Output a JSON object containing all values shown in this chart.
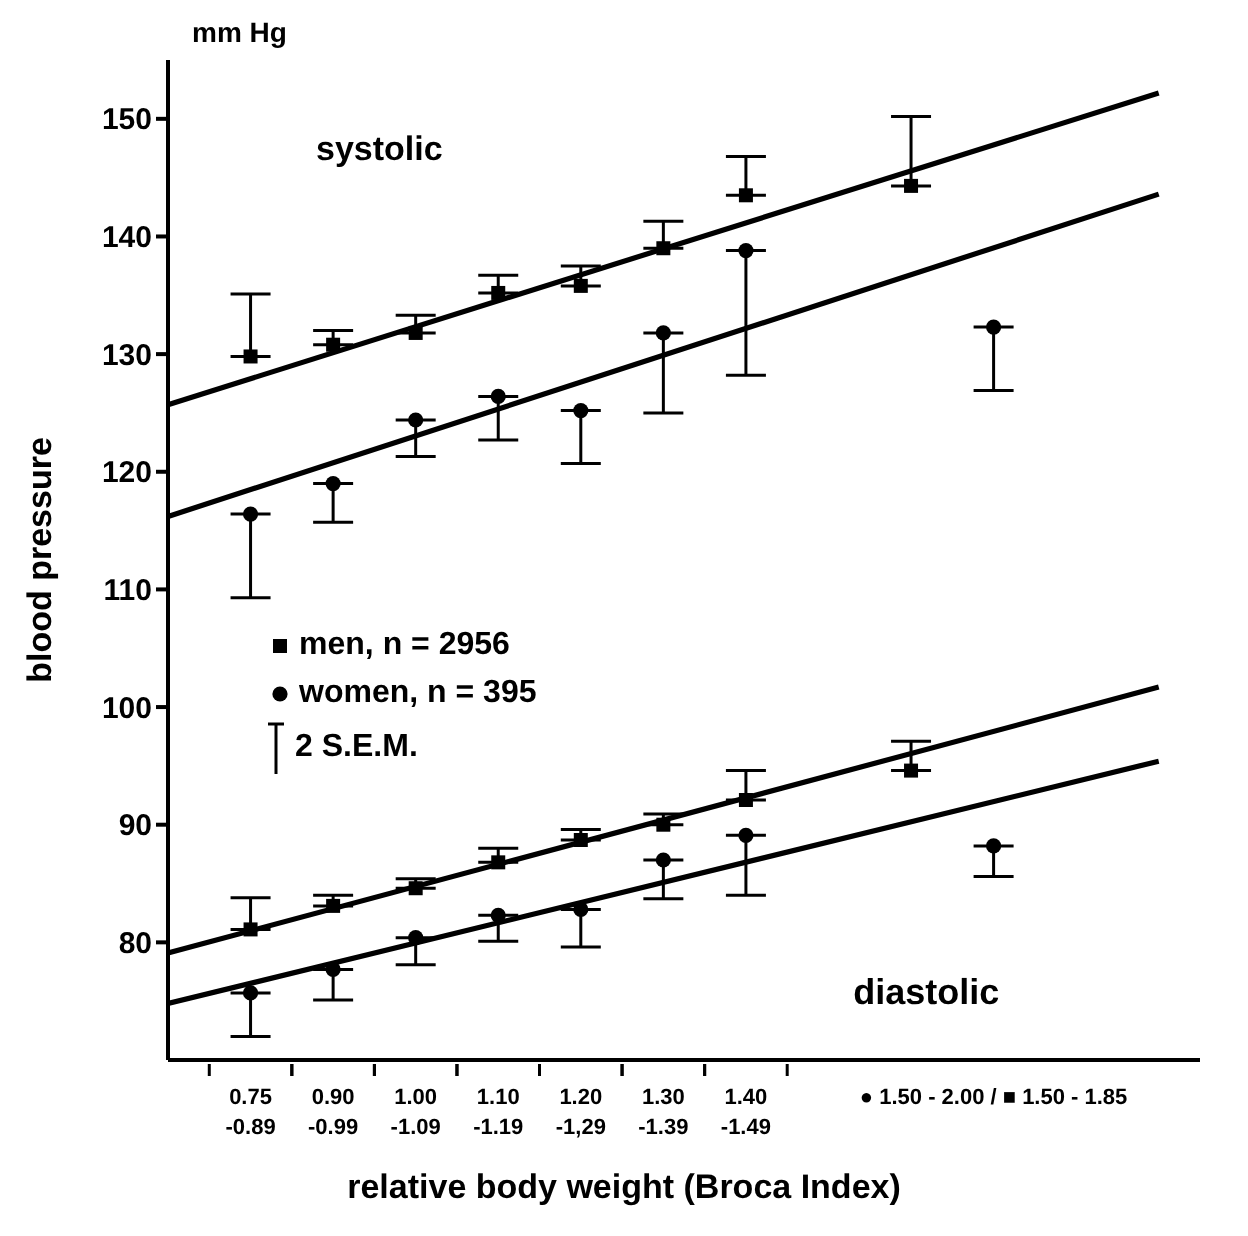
{
  "chart_data": {
    "type": "scatter",
    "xlabel": "relative body weight (Broca Index)",
    "ylabel": "blood pressure",
    "annotations": [
      "mm Hg",
      "systolic",
      "2 S.E.M.",
      "diastolic"
    ],
    "legend": "left",
    "ylim": [
      70,
      155
    ],
    "yticks": [
      80,
      90,
      100,
      110,
      120,
      130,
      140,
      150
    ],
    "categories": [
      null,
      "0.75\n-0.89",
      "0.90\n-0.99",
      "1.00\n-1.09",
      "1.10\n-1.19",
      "1.20\n-1,29",
      "1.30\n-1.39",
      "1.40\n-1.49",
      null,
      null,
      "● 1.50 - 2.00 / ■ 1.50 - 1.85",
      null,
      null
    ],
    "series": [
      {
        "type": "scatter",
        "color": "#000000",
        "marker": "square",
        "values": [
          null,
          129.8,
          130.8,
          131.8,
          135.2,
          135.8,
          139.0,
          143.5,
          null,
          144.3,
          null,
          null,
          null
        ],
        "errors": [
          null,
          [
            129.8,
            135.1
          ],
          [
            130.8,
            132.0
          ],
          [
            131.8,
            133.3
          ],
          [
            135.2,
            136.7
          ],
          [
            135.8,
            137.5
          ],
          [
            139.0,
            141.3
          ],
          [
            143.5,
            146.8
          ],
          null,
          [
            144.3,
            150.2
          ],
          null,
          null,
          null
        ]
      },
      {
        "type": "scatter",
        "color": "#000000",
        "marker": "circle",
        "values": [
          null,
          116.4,
          119.0,
          124.4,
          126.4,
          125.2,
          131.8,
          138.8,
          null,
          null,
          132.3,
          null,
          null
        ],
        "errors": [
          null,
          [
            109.3,
            116.4
          ],
          [
            115.7,
            119.0
          ],
          [
            121.3,
            124.4
          ],
          [
            122.7,
            126.4
          ],
          [
            120.7,
            125.2
          ],
          [
            125.0,
            131.8
          ],
          [
            128.2,
            138.8
          ],
          null,
          null,
          [
            126.9,
            132.3
          ],
          null,
          null
        ]
      },
      {
        "type": "line",
        "color": "#000000",
        "marker": "none",
        "line_style": "solid",
        "values": [
          125.7,
          null,
          null,
          null,
          null,
          null,
          null,
          null,
          null,
          null,
          null,
          null,
          152.2
        ]
      },
      {
        "type": "line",
        "color": "#000000",
        "marker": "none",
        "line_style": "solid",
        "values": [
          116.2,
          null,
          null,
          null,
          null,
          null,
          null,
          null,
          null,
          null,
          null,
          null,
          143.6
        ]
      },
      {
        "type": "scatter",
        "name": "men,  n = 2956",
        "color": "#000000",
        "marker": "square",
        "values": [
          null,
          81.1,
          83.1,
          84.6,
          86.8,
          88.7,
          90.0,
          92.1,
          null,
          94.6,
          null,
          null,
          null
        ],
        "errors": [
          null,
          [
            81.1,
            83.8
          ],
          [
            83.1,
            84.0
          ],
          [
            84.6,
            85.4
          ],
          [
            86.8,
            88.0
          ],
          [
            88.7,
            89.6
          ],
          [
            90.0,
            90.9
          ],
          [
            92.1,
            94.6
          ],
          null,
          [
            94.6,
            97.1
          ],
          null,
          null,
          null
        ]
      },
      {
        "type": "scatter",
        "name": "women,  n = 395",
        "color": "#000000",
        "marker": "circle",
        "values": [
          null,
          75.7,
          77.7,
          80.4,
          82.3,
          82.8,
          87.0,
          89.1,
          null,
          null,
          88.2,
          null,
          null
        ],
        "errors": [
          null,
          [
            72.0,
            75.7
          ],
          [
            75.1,
            77.7
          ],
          [
            78.1,
            80.4
          ],
          [
            80.1,
            82.3
          ],
          [
            79.6,
            82.8
          ],
          [
            83.7,
            87.0
          ],
          [
            84.0,
            89.1
          ],
          null,
          null,
          [
            85.6,
            88.2
          ],
          null,
          null
        ]
      },
      {
        "type": "line",
        "color": "#000000",
        "marker": "none",
        "line_style": "solid",
        "values": [
          79.1,
          null,
          null,
          null,
          null,
          null,
          null,
          null,
          null,
          null,
          null,
          null,
          101.7
        ]
      },
      {
        "type": "line",
        "color": "#000000",
        "marker": "none",
        "line_style": "solid",
        "values": [
          74.8,
          null,
          null,
          null,
          null,
          null,
          null,
          null,
          null,
          null,
          null,
          null,
          95.4
        ]
      }
    ]
  }
}
